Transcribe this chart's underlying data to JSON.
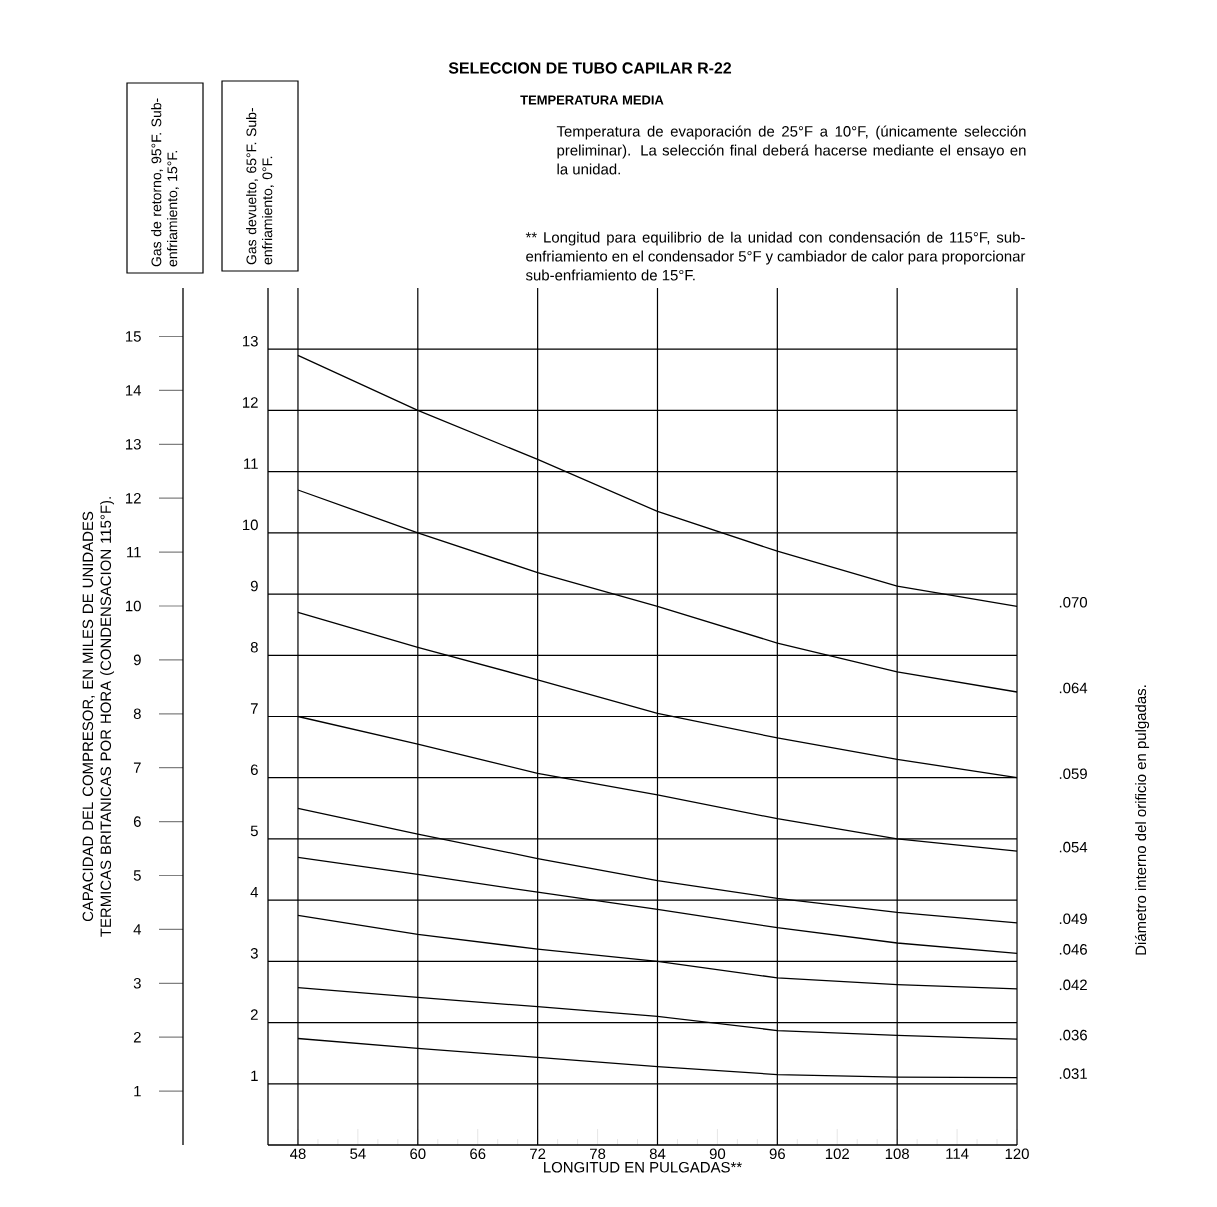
{
  "chart_data": {
    "type": "line",
    "title": "SELECCION DE TUBO CAPILAR R-22",
    "subtitle": "TEMPERATURA MEDIA",
    "xlabel": "LONGITUD EN PULGADAS**",
    "ylabel": "CAPACIDAD DEL COMPRESOR, EN MILES DE UNIDADES TERMICAS BRITANICAS POR HORA (CONDENSACION 115°F).",
    "legend_title": "Diámetro interno del orificio en pulgadas.",
    "annotations": [
      "Temperatura de evaporación de 25°F a 10°F, (únicamente selección preliminar). La selección final deberá hacerse mediante el ensayo en la unidad.",
      "** Longitud para equilibrio de la unidad con condensación de 115°F, sub-enfriamiento en el condensador 5°F y cambiador de calor para proporcionar sub-enfriamiento de 15°F.",
      "Gas de retorno, 95°F. Sub-enfriamiento, 15°F.",
      "Gas devuelto, 65°F. Sub-enfriamiento, 0°F."
    ],
    "x": [
      48,
      60,
      72,
      84,
      96,
      108,
      120
    ],
    "xlim": [
      45,
      120
    ],
    "xticks": [
      48,
      54,
      60,
      66,
      72,
      78,
      84,
      90,
      96,
      102,
      108,
      114,
      120
    ],
    "ylim": [
      0,
      15.9
    ],
    "yticks": [
      1,
      2,
      3,
      4,
      5,
      6,
      7,
      8,
      9,
      10,
      11,
      12,
      13,
      14,
      15
    ],
    "y2lim": [
      0,
      14
    ],
    "y2ticks": [
      1,
      2,
      3,
      4,
      5,
      6,
      7,
      8,
      9,
      10,
      11,
      12,
      13
    ],
    "grid": true,
    "series": [
      {
        "name": ".070",
        "color": "#000000",
        "axis": "y2",
        "values": [
          12.9,
          12.0,
          11.2,
          10.35,
          9.7,
          9.13,
          8.8
        ]
      },
      {
        "name": ".064",
        "color": "#000000",
        "axis": "y2",
        "values": [
          10.7,
          10.0,
          9.35,
          8.8,
          8.2,
          7.73,
          7.4
        ]
      },
      {
        "name": ".059",
        "color": "#000000",
        "axis": "y2",
        "values": [
          8.7,
          8.13,
          7.6,
          7.05,
          6.65,
          6.3,
          6.0
        ]
      },
      {
        "name": ".054",
        "color": "#000000",
        "axis": "y2",
        "values": [
          7.0,
          6.55,
          6.07,
          5.72,
          5.33,
          5.0,
          4.8
        ]
      },
      {
        "name": ".049",
        "color": "#000000",
        "axis": "y2",
        "values": [
          5.5,
          5.08,
          4.68,
          4.32,
          4.03,
          3.8,
          3.63
        ]
      },
      {
        "name": ".046",
        "color": "#000000",
        "axis": "y2",
        "values": [
          4.7,
          4.42,
          4.13,
          3.85,
          3.55,
          3.3,
          3.13
        ]
      },
      {
        "name": ".042",
        "color": "#000000",
        "axis": "y2",
        "values": [
          3.75,
          3.44,
          3.2,
          3.0,
          2.73,
          2.62,
          2.55
        ]
      },
      {
        "name": ".036",
        "color": "#000000",
        "axis": "y2",
        "values": [
          2.57,
          2.41,
          2.26,
          2.1,
          1.87,
          1.79,
          1.73
        ]
      },
      {
        "name": ".031",
        "color": "#000000",
        "axis": "y2",
        "values": [
          1.74,
          1.58,
          1.43,
          1.28,
          1.15,
          1.11,
          1.1
        ]
      }
    ]
  }
}
